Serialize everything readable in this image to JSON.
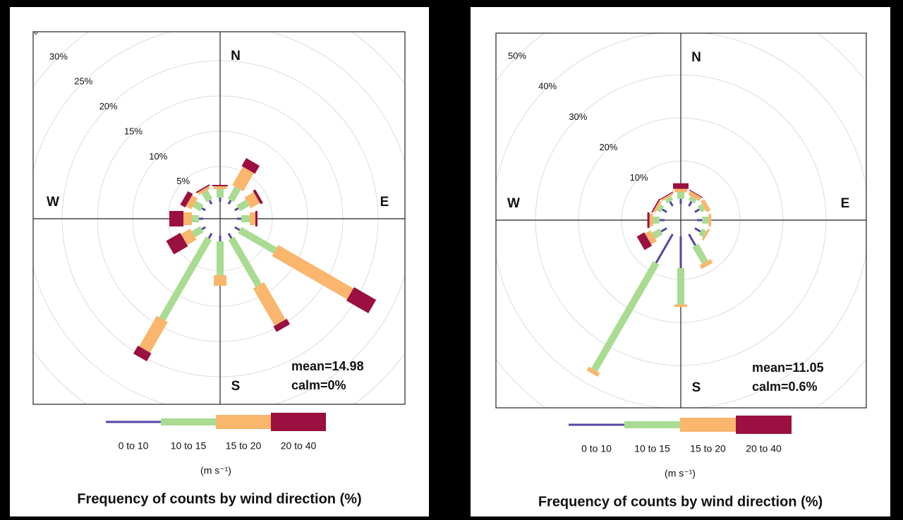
{
  "chart_data": [
    {
      "type": "windrose",
      "title": "Frequency of counts by wind direction (%)",
      "legend_title": "(m s⁻¹)",
      "direction_labels": [
        "N",
        "E",
        "S",
        "W"
      ],
      "annotations": [
        "mean=14.98",
        "calm=0%"
      ],
      "x": [
        0,
        30,
        60,
        90,
        120,
        150,
        180,
        210,
        240,
        270,
        300,
        330
      ],
      "rlim": [
        0,
        35
      ],
      "rticks": [
        {
          "value": 5,
          "label": "5%"
        },
        {
          "value": 10,
          "label": "10%"
        },
        {
          "value": 15,
          "label": "15%"
        },
        {
          "value": 20,
          "label": "20%"
        },
        {
          "value": 25,
          "label": "25%"
        },
        {
          "value": 30,
          "label": "30%"
        },
        {
          "value": 35,
          "label": "%"
        }
      ],
      "series": [
        {
          "name": "0 to 10",
          "color": "#5447a6",
          "values": [
            0.6,
            0.6,
            0.6,
            0.6,
            0.8,
            0.8,
            0.8,
            0.8,
            0.6,
            0.6,
            0.6,
            0.6
          ]
        },
        {
          "name": "10 to 15",
          "color": "#a9dc92",
          "values": [
            1.2,
            2.0,
            1.5,
            1.2,
            5.8,
            7.7,
            4.8,
            13.2,
            1.4,
            1.0,
            1.2,
            1.4
          ]
        },
        {
          "name": "15 to 20",
          "color": "#f9b66c",
          "values": [
            0.4,
            3.0,
            1.5,
            0.8,
            12.3,
            6.1,
            1.5,
            5.0,
            1.5,
            1.2,
            0.9,
            0.4
          ]
        },
        {
          "name": "20 to 40",
          "color": "#9a1040",
          "values": [
            0.2,
            1.3,
            0.4,
            0.3,
            3.6,
            0.9,
            0,
            1.3,
            2.3,
            2.0,
            0.8,
            0.2
          ]
        }
      ]
    },
    {
      "type": "windrose",
      "title": "Frequency of counts by wind direction (%)",
      "legend_title": "(m s⁻¹)",
      "direction_labels": [
        "N",
        "E",
        "S",
        "W"
      ],
      "annotations": [
        "mean=11.05",
        "calm=0.6%"
      ],
      "x": [
        0,
        30,
        60,
        90,
        120,
        150,
        180,
        210,
        240,
        270,
        300,
        330
      ],
      "rlim": [
        0,
        50
      ],
      "rticks": [
        {
          "value": 10,
          "label": "10%"
        },
        {
          "value": 20,
          "label": "20%"
        },
        {
          "value": 30,
          "label": "30%"
        },
        {
          "value": 40,
          "label": "40%"
        },
        {
          "value": 50,
          "label": "50%"
        }
      ],
      "series": [
        {
          "name": "0 to 10",
          "color": "#5447a6",
          "values": [
            1.2,
            1.2,
            1.2,
            1.2,
            1.5,
            3.0,
            7.4,
            7.7,
            1.5,
            1.2,
            1.2,
            1.2
          ]
        },
        {
          "name": "10 to 15",
          "color": "#a9dc92",
          "values": [
            1.5,
            1.0,
            1.2,
            1.5,
            1.2,
            4.5,
            8.4,
            28.7,
            2.0,
            1.5,
            1.0,
            1.0
          ]
        },
        {
          "name": "15 to 20",
          "color": "#f9b66c",
          "values": [
            0.8,
            1.0,
            1.0,
            0.6,
            0.5,
            1.0,
            0.6,
            1.0,
            1.5,
            0.8,
            0.6,
            0.5
          ]
        },
        {
          "name": "20 to 40",
          "color": "#9a1040",
          "values": [
            1.3,
            0.2,
            0,
            0,
            0,
            0,
            0,
            0,
            2.0,
            0.5,
            0.3,
            0.2
          ]
        }
      ]
    }
  ]
}
